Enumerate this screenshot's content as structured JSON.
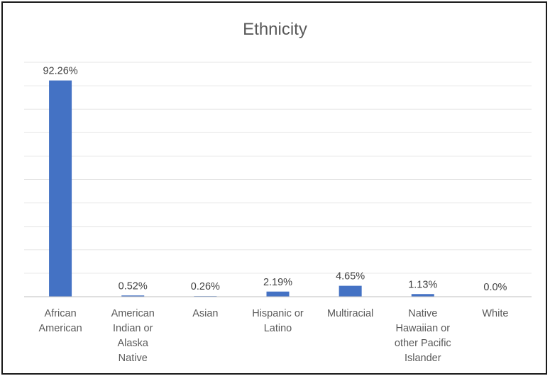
{
  "chart_data": {
    "type": "bar",
    "title": "Ethnicity",
    "categories": [
      [
        "African",
        "American"
      ],
      [
        "American",
        "Indian or",
        "Alaska",
        "Native"
      ],
      [
        "Asian"
      ],
      [
        "Hispanic or",
        "Latino"
      ],
      [
        "Multiracial"
      ],
      [
        "Native",
        "Hawaiian or",
        "other Pacific",
        "Islander"
      ],
      [
        "White"
      ]
    ],
    "values": [
      92.26,
      0.52,
      0.26,
      2.19,
      4.65,
      1.13,
      0.0
    ],
    "data_labels": [
      "92.26%",
      "0.52%",
      "0.26%",
      "2.19%",
      "4.65%",
      "1.13%",
      "0.0%"
    ],
    "ylim": [
      0,
      100
    ],
    "grid": true,
    "axis_tick_labels": false,
    "colors": {
      "bar": "#4472C4",
      "grid": "#e6e6e6",
      "axis": "#bfbfbf"
    }
  }
}
